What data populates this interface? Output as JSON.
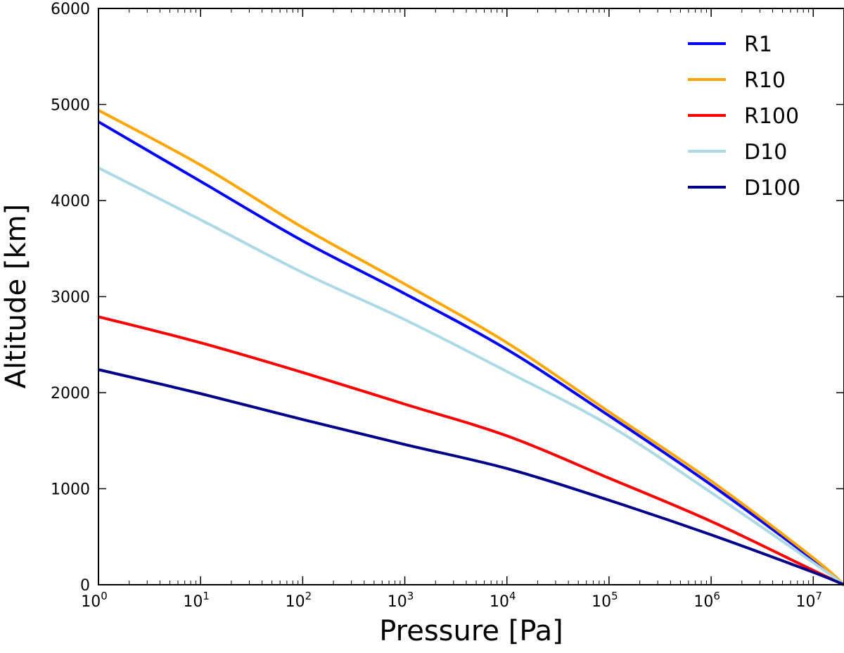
{
  "chart_data": {
    "type": "line",
    "title": "",
    "xlabel": "Pressure [Pa]",
    "ylabel": "Altitude [km]",
    "xscale": "log",
    "xlim": [
      1,
      20000000
    ],
    "ylim": [
      0,
      6000
    ],
    "xticks": [
      {
        "base": "10",
        "exp": "0",
        "value": 1
      },
      {
        "base": "10",
        "exp": "1",
        "value": 10
      },
      {
        "base": "10",
        "exp": "2",
        "value": 100
      },
      {
        "base": "10",
        "exp": "3",
        "value": 1000
      },
      {
        "base": "10",
        "exp": "4",
        "value": 10000
      },
      {
        "base": "10",
        "exp": "5",
        "value": 100000
      },
      {
        "base": "10",
        "exp": "6",
        "value": 1000000
      },
      {
        "base": "10",
        "exp": "7",
        "value": 10000000
      }
    ],
    "yticks": [
      "0",
      "1000",
      "2000",
      "3000",
      "4000",
      "5000",
      "6000"
    ],
    "grid": false,
    "legend_position": "top-right",
    "series": [
      {
        "name": "R1",
        "color": "#0000ff",
        "x": [
          1,
          10,
          100,
          1000,
          10000,
          100000,
          1000000,
          10000000,
          20000000
        ],
        "y": [
          4820,
          4200,
          3580,
          3030,
          2450,
          1760,
          1040,
          260,
          0
        ]
      },
      {
        "name": "R10",
        "color": "#ffa500",
        "x": [
          1,
          10,
          100,
          1000,
          10000,
          100000,
          1000000,
          10000000,
          20000000
        ],
        "y": [
          4940,
          4370,
          3720,
          3130,
          2520,
          1800,
          1080,
          280,
          0
        ]
      },
      {
        "name": "R100",
        "color": "#ff0000",
        "x": [
          1,
          10,
          100,
          1000,
          10000,
          100000,
          1000000,
          10000000,
          20000000
        ],
        "y": [
          2790,
          2520,
          2210,
          1880,
          1550,
          1110,
          660,
          150,
          0
        ]
      },
      {
        "name": "D10",
        "color": "#add8e6",
        "x": [
          1,
          10,
          100,
          1000,
          10000,
          100000,
          1000000,
          10000000,
          20000000
        ],
        "y": [
          4340,
          3800,
          3250,
          2760,
          2220,
          1660,
          960,
          230,
          0
        ]
      },
      {
        "name": "D100",
        "color": "#00008b",
        "x": [
          1,
          10,
          100,
          1000,
          10000,
          100000,
          1000000,
          10000000,
          20000000
        ],
        "y": [
          2240,
          1990,
          1720,
          1460,
          1210,
          880,
          520,
          130,
          0
        ]
      }
    ]
  }
}
